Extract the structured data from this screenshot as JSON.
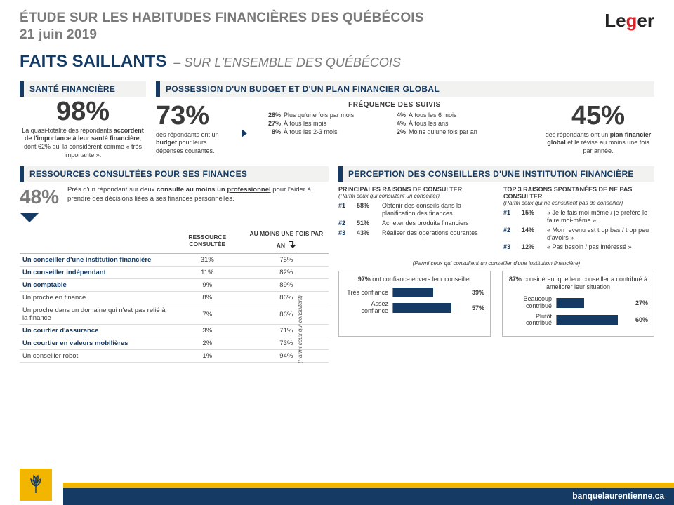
{
  "header": {
    "title_l1": "ÉTUDE SUR LES HABITUDES FINANCIÈRES DES QUÉBÉCOIS",
    "title_l2": "21 juin 2019",
    "logo_plain": "Le",
    "logo_red": "g",
    "logo_tail": "er"
  },
  "sub": {
    "bold": "FAITS SAILLANTS",
    "italic": "– SUR L'ENSEMBLE DES QUÉBÉCOIS"
  },
  "sante": {
    "bar": "SANTÉ FINANCIÈRE",
    "pct": "98%",
    "desc": "La quasi-totalité des répondants accordent de l'importance à leur santé financière, dont 62% qui la considèrent comme « très importante »."
  },
  "budget": {
    "bar": "POSSESSION D'UN BUDGET ET D'UN PLAN FINANCIER GLOBAL",
    "pct73": "73%",
    "desc73": "des répondants ont un budget pour leurs dépenses courantes.",
    "freq_title": "FRÉQUENCE DES SUIVIS",
    "freq": [
      {
        "p": "28%",
        "l": "Plus qu'une fois par mois",
        "p2": "4%",
        "l2": "À tous les 6 mois"
      },
      {
        "p": "27%",
        "l": "À tous les mois",
        "p2": "4%",
        "l2": "À tous les ans"
      },
      {
        "p": "8%",
        "l": "À tous les 2-3 mois",
        "p2": "2%",
        "l2": "Moins qu'une fois par an"
      }
    ],
    "pct45": "45%",
    "desc45": "des répondants ont un plan financier global et le révise au moins une fois par année."
  },
  "resources": {
    "bar": "RESSOURCES CONSULTÉES POUR SES FINANCES",
    "pct": "48%",
    "desc": "Près d'un répondant sur deux consulte au moins un professionnel pour l'aider à prendre des décisions liées à ses finances personnelles.",
    "th1": "RESSOURCE CONSULTÉE",
    "th2": "AU MOINS UNE FOIS PAR AN",
    "note": "(Parmi ceux qui consultent)",
    "rows": [
      {
        "label": "Un conseiller d'une institution financière",
        "v1": "31%",
        "v2": "75%",
        "pro": true
      },
      {
        "label": "Un conseiller indépendant",
        "v1": "11%",
        "v2": "82%",
        "pro": true
      },
      {
        "label": "Un comptable",
        "v1": "9%",
        "v2": "89%",
        "pro": true
      },
      {
        "label": "Un proche en finance",
        "v1": "8%",
        "v2": "86%",
        "pro": false
      },
      {
        "label": "Un proche dans un domaine qui n'est pas relié à la finance",
        "v1": "7%",
        "v2": "86%",
        "pro": false
      },
      {
        "label": "Un courtier d'assurance",
        "v1": "3%",
        "v2": "71%",
        "pro": true
      },
      {
        "label": "Un courtier en valeurs mobilières",
        "v1": "2%",
        "v2": "73%",
        "pro": true
      },
      {
        "label": "Un conseiller robot",
        "v1": "1%",
        "v2": "94%",
        "pro": false
      }
    ]
  },
  "perception": {
    "bar": "PERCEPTION DES CONSEILLERS D'UNE INSTITUTION FINANCIÈRE",
    "left": {
      "h": "PRINCIPALES RAISONS DE CONSULTER",
      "s": "(Parmi ceux qui consultent un conseiller)",
      "rows": [
        {
          "n": "#1",
          "p": "58%",
          "l": "Obtenir des conseils dans la planification des finances"
        },
        {
          "n": "#2",
          "p": "51%",
          "l": "Acheter des produits financiers"
        },
        {
          "n": "#3",
          "p": "43%",
          "l": "Réaliser des opérations courantes"
        }
      ]
    },
    "right": {
      "h": "TOP 3 RAISONS SPONTANÉES DE NE PAS CONSULTER",
      "s": "(Parmi ceux qui ne consultent pas de conseiller)",
      "rows": [
        {
          "n": "#1",
          "p": "15%",
          "l": "« Je le fais moi-même / je préfère le faire moi-même »"
        },
        {
          "n": "#2",
          "p": "14%",
          "l": "« Mon revenu est trop bas / trop peu d'avoirs »"
        },
        {
          "n": "#3",
          "p": "12%",
          "l": "« Pas besoin / pas intéressé »"
        }
      ]
    },
    "mini_sub": "(Parmi ceux qui consultent un conseiller d'une institution financière)",
    "chart1": {
      "title_pct": "97%",
      "title_rest": "ont confiance envers leur conseiller",
      "bars": [
        {
          "label": "Très confiance",
          "val": 39,
          "txt": "39%"
        },
        {
          "label": "Assez confiance",
          "val": 57,
          "txt": "57%"
        }
      ],
      "max": 70,
      "bar_color": "#153a63"
    },
    "chart2": {
      "title_pct": "87%",
      "title_rest": "considèrent que leur conseiller a contribué à améliorer leur situation",
      "bars": [
        {
          "label": "Beaucoup contribué",
          "val": 27,
          "txt": "27%"
        },
        {
          "label": "Plutôt contribué",
          "val": 60,
          "txt": "60%"
        }
      ],
      "max": 70,
      "bar_color": "#153a63"
    }
  },
  "footer": {
    "url": "banquelaurentienne.ca"
  },
  "colors": {
    "navy": "#153a63",
    "grey": "#7a7a7a",
    "yellow": "#f2b600",
    "bg": "#ffffff",
    "barbg": "#f2f2f0"
  }
}
